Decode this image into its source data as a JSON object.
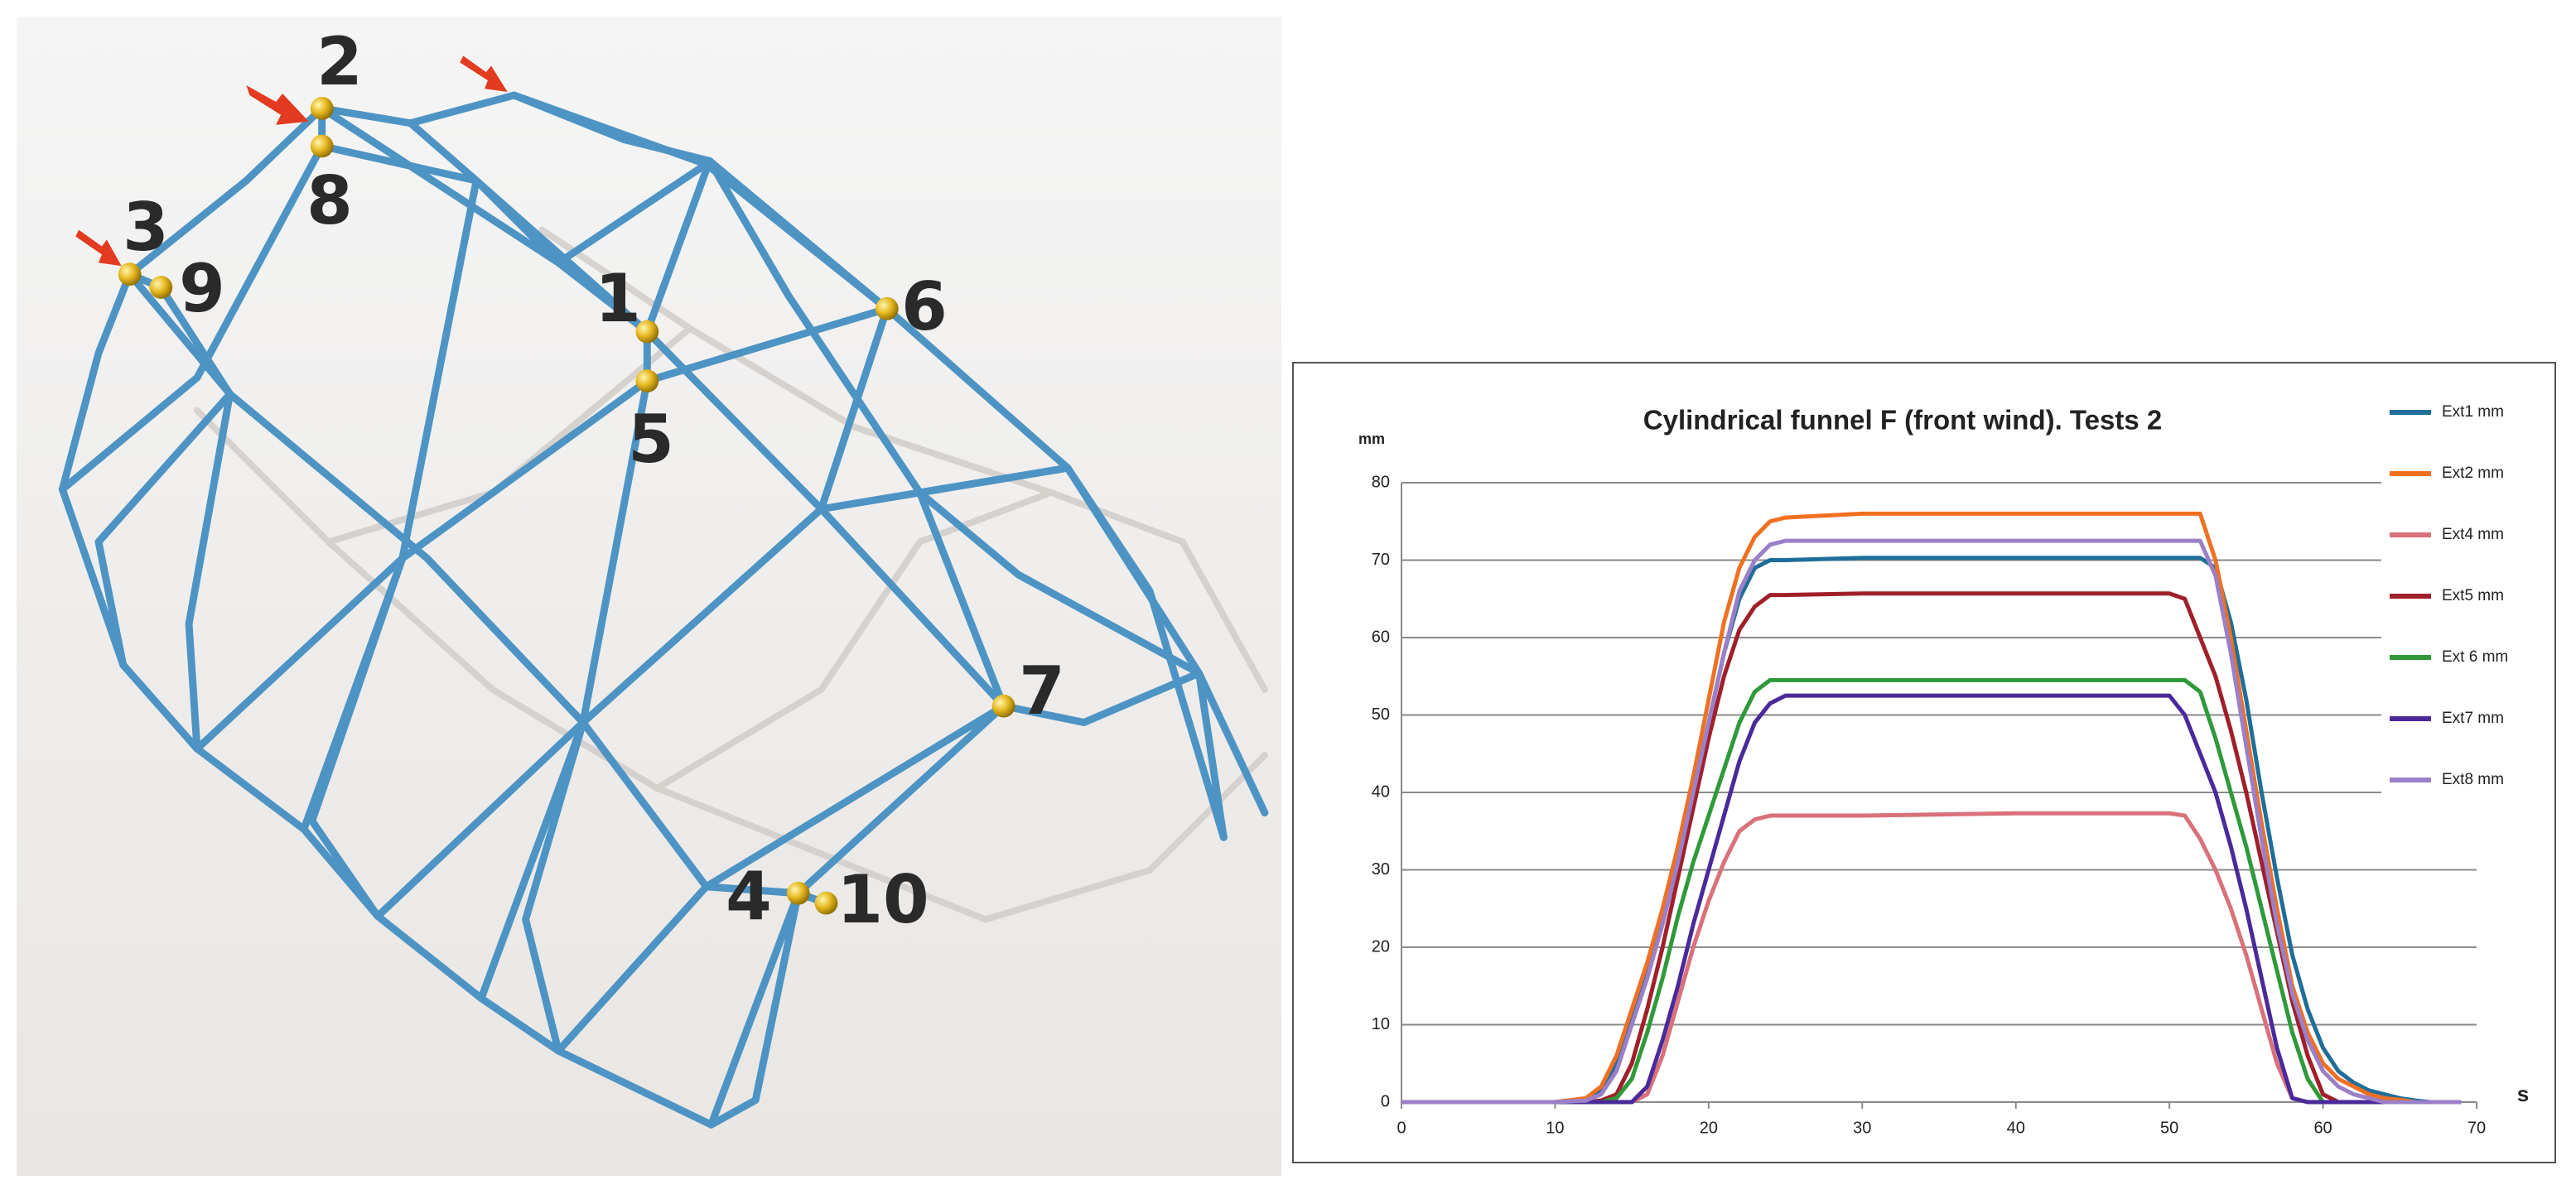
{
  "diagram": {
    "node_labels": [
      "2",
      "8",
      "3",
      "9",
      "1",
      "5",
      "6",
      "7",
      "4",
      "10"
    ]
  },
  "chart_data": {
    "type": "line",
    "title": "Cylindrical funnel F (front wind). Tests 2",
    "y_label": "mm",
    "x_label": "s",
    "xlim": [
      0,
      70
    ],
    "xticks": [
      0,
      10,
      20,
      30,
      40,
      50,
      60,
      70
    ],
    "ylim": [
      0,
      80
    ],
    "yticks": [
      0,
      10,
      20,
      30,
      40,
      50,
      60,
      70,
      80
    ],
    "grid": true,
    "legend": "right",
    "x": [
      0,
      10,
      12,
      13,
      14,
      15,
      16,
      17,
      18,
      19,
      20,
      21,
      22,
      23,
      24,
      25,
      30,
      40,
      50,
      51,
      52,
      53,
      54,
      55,
      56,
      57,
      58,
      59,
      60,
      61,
      62,
      63,
      64,
      65,
      66,
      67,
      68,
      69
    ],
    "series": [
      {
        "name": "Ext1 mm",
        "color": "#1f6e99",
        "values": [
          0,
          0,
          0.3,
          1.5,
          5,
          11,
          17,
          24,
          32,
          40,
          49,
          58,
          65,
          69,
          70,
          70,
          70.3,
          70.3,
          70.3,
          70.3,
          70.3,
          69,
          62,
          52,
          40,
          29,
          19,
          12,
          7,
          4,
          2.5,
          1.5,
          1,
          0.5,
          0.2,
          0,
          0,
          0
        ]
      },
      {
        "name": "Ext2 mm",
        "color": "#f07022",
        "values": [
          0,
          0,
          0.5,
          2,
          6,
          12,
          18,
          25,
          33,
          42,
          52,
          62,
          69,
          73,
          75,
          75.5,
          76,
          76,
          76,
          76,
          76,
          70,
          60,
          48,
          36,
          25,
          15,
          9,
          5,
          3,
          2,
          1,
          0.5,
          0.3,
          0,
          0,
          0,
          0
        ]
      },
      {
        "name": "Ext4 mm",
        "color": "#d9707a",
        "values": [
          0,
          0,
          0,
          0,
          0,
          0,
          1,
          6,
          13,
          20,
          26,
          31,
          35,
          36.5,
          37,
          37,
          37,
          37.3,
          37.3,
          37,
          34,
          30,
          25,
          19,
          12,
          5,
          0.5,
          0,
          0,
          0,
          0,
          0,
          0,
          0,
          0,
          0,
          0,
          0
        ]
      },
      {
        "name": "Ext5 mm",
        "color": "#a0202a",
        "values": [
          0,
          0,
          0,
          0.2,
          1,
          5,
          12,
          20,
          29,
          38,
          47,
          55,
          61,
          64,
          65.5,
          65.5,
          65.7,
          65.7,
          65.7,
          65,
          60,
          55,
          48,
          40,
          31,
          22,
          13,
          6,
          1,
          0,
          0,
          0,
          0,
          0,
          0,
          0,
          0,
          0
        ]
      },
      {
        "name": "Ext 6 mm",
        "color": "#2e9a3a",
        "values": [
          0,
          0,
          0,
          0,
          0.5,
          3,
          9,
          16,
          24,
          31,
          37,
          43,
          49,
          53,
          54.5,
          54.5,
          54.5,
          54.5,
          54.5,
          54.5,
          53,
          47,
          40,
          33,
          25,
          17,
          9,
          3,
          0,
          0,
          0,
          0,
          0,
          0,
          0,
          0,
          0,
          0
        ]
      },
      {
        "name": "Ext7 mm",
        "color": "#4a2a9a",
        "values": [
          0,
          0,
          0,
          0,
          0,
          0,
          2,
          8,
          15,
          23,
          30,
          37,
          44,
          49,
          51.5,
          52.5,
          52.5,
          52.5,
          52.5,
          50,
          45,
          40,
          33,
          25,
          16,
          7,
          0.5,
          0,
          0,
          0,
          0,
          0,
          0,
          0,
          0,
          0,
          0,
          0
        ]
      },
      {
        "name": "Ext8 mm",
        "color": "#9a80c8",
        "values": [
          0,
          0,
          0.2,
          1,
          4,
          10,
          16,
          23,
          31,
          40,
          49,
          58,
          66,
          70,
          72,
          72.5,
          72.5,
          72.5,
          72.5,
          72.5,
          72.5,
          68,
          58,
          46,
          34,
          23,
          14,
          8,
          4,
          2,
          1,
          0.5,
          0,
          0,
          0,
          0,
          0,
          0
        ]
      }
    ]
  }
}
